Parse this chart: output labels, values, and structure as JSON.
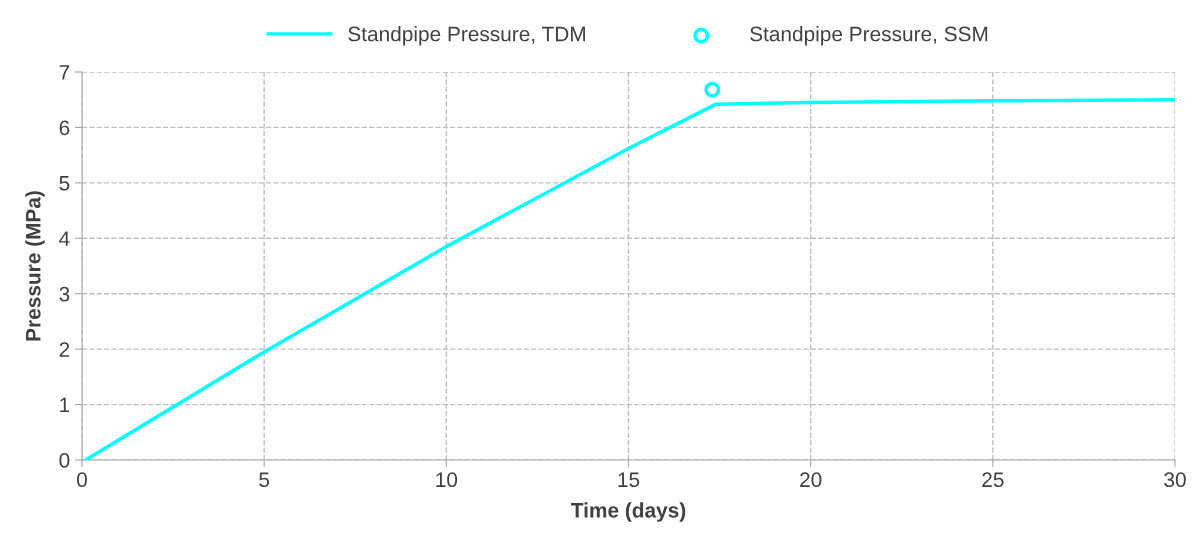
{
  "chart_data": {
    "type": "line",
    "xlabel": "Time (days)",
    "ylabel": "Pressure (MPa)",
    "xlim": [
      0,
      30
    ],
    "ylim": [
      0,
      7
    ],
    "xticks": [
      0,
      5,
      10,
      15,
      20,
      25,
      30
    ],
    "yticks": [
      0,
      1,
      2,
      3,
      4,
      5,
      6,
      7
    ],
    "grid": true,
    "legend": "top",
    "line_style": "solid",
    "series": [
      {
        "name": "Standpipe Pressure, TDM",
        "color": "#00ffff",
        "marker": "none",
        "x": [
          0.1,
          5,
          10,
          15,
          17.4,
          20,
          25,
          30
        ],
        "values": [
          0,
          1.95,
          3.85,
          5.62,
          6.42,
          6.45,
          6.48,
          6.5
        ]
      },
      {
        "name": "Standpipe Pressure, SSM",
        "type": "scatter",
        "color": "#00ffff",
        "marker": "circle",
        "x": [
          17.3
        ],
        "values": [
          6.68
        ]
      }
    ]
  }
}
